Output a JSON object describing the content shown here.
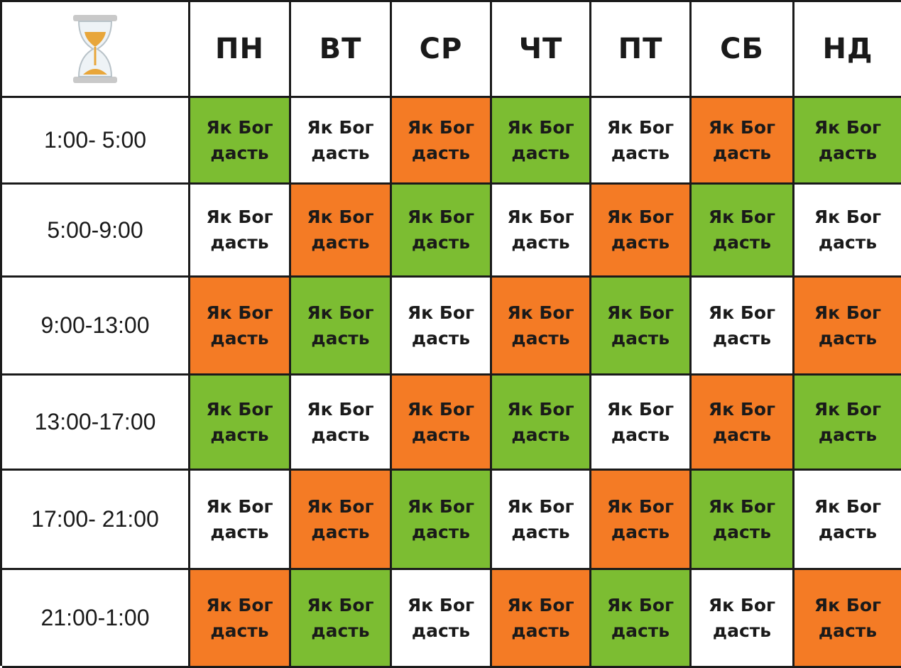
{
  "corner_icon": "hourglass-icon",
  "colors": {
    "green": "#7cbd32",
    "orange": "#f47b25",
    "white": "#ffffff",
    "sand": "#e8a63a",
    "grid_line": "#1a1a1a"
  },
  "days": [
    "ПН",
    "ВТ",
    "СР",
    "ЧТ",
    "ПТ",
    "СБ",
    "НД"
  ],
  "rows": [
    {
      "time": "1:00- 5:00",
      "cells": [
        {
          "line1": "Як Бог",
          "line2": "дасть",
          "color": "green"
        },
        {
          "line1": "Як Бог",
          "line2": "дасть",
          "color": "white"
        },
        {
          "line1": "Як Бог",
          "line2": "дасть",
          "color": "orange"
        },
        {
          "line1": "Як Бог",
          "line2": "дасть",
          "color": "green"
        },
        {
          "line1": "Як Бог",
          "line2": "дасть",
          "color": "white"
        },
        {
          "line1": "Як Бог",
          "line2": "дасть",
          "color": "orange"
        },
        {
          "line1": "Як Бог",
          "line2": "дасть",
          "color": "green"
        }
      ]
    },
    {
      "time": "5:00-9:00",
      "cells": [
        {
          "line1": "Як Бог",
          "line2": "дасть",
          "color": "white"
        },
        {
          "line1": "Як Бог",
          "line2": "дасть",
          "color": "orange"
        },
        {
          "line1": "Як Бог",
          "line2": "дасть",
          "color": "green"
        },
        {
          "line1": "Як Бог",
          "line2": "дасть",
          "color": "white"
        },
        {
          "line1": "Як Бог",
          "line2": "дасть",
          "color": "orange"
        },
        {
          "line1": "Як Бог",
          "line2": "дасть",
          "color": "green"
        },
        {
          "line1": "Як Бог",
          "line2": "дасть",
          "color": "white"
        }
      ]
    },
    {
      "time": "9:00-13:00",
      "cells": [
        {
          "line1": "Як Бог",
          "line2": "дасть",
          "color": "orange"
        },
        {
          "line1": "Як Бог",
          "line2": "дасть",
          "color": "green"
        },
        {
          "line1": "Як Бог",
          "line2": "дасть",
          "color": "white"
        },
        {
          "line1": "Як Бог",
          "line2": "дасть",
          "color": "orange"
        },
        {
          "line1": "Як Бог",
          "line2": "дасть",
          "color": "green"
        },
        {
          "line1": "Як Бог",
          "line2": "дасть",
          "color": "white"
        },
        {
          "line1": "Як Бог",
          "line2": "дасть",
          "color": "orange"
        }
      ]
    },
    {
      "time": "13:00-17:00",
      "cells": [
        {
          "line1": "Як Бог",
          "line2": "дасть",
          "color": "green"
        },
        {
          "line1": "Як Бог",
          "line2": "дасть",
          "color": "white"
        },
        {
          "line1": "Як Бог",
          "line2": "дасть",
          "color": "orange"
        },
        {
          "line1": "Як Бог",
          "line2": "дасть",
          "color": "green"
        },
        {
          "line1": "Як Бог",
          "line2": "дасть",
          "color": "white"
        },
        {
          "line1": "Як Бог",
          "line2": "дасть",
          "color": "orange"
        },
        {
          "line1": "Як Бог",
          "line2": "дасть",
          "color": "green"
        }
      ]
    },
    {
      "time": "17:00- 21:00",
      "cells": [
        {
          "line1": "Як Бог",
          "line2": "дасть",
          "color": "white"
        },
        {
          "line1": "Як Бог",
          "line2": "дасть",
          "color": "orange"
        },
        {
          "line1": "Як Бог",
          "line2": "дасть",
          "color": "green"
        },
        {
          "line1": "Як Бог",
          "line2": "дасть",
          "color": "white"
        },
        {
          "line1": "Як Бог",
          "line2": "дасть",
          "color": "orange"
        },
        {
          "line1": "Як Бог",
          "line2": "дасть",
          "color": "green"
        },
        {
          "line1": "Як Бог",
          "line2": "дасть",
          "color": "white"
        }
      ]
    },
    {
      "time": "21:00-1:00",
      "cells": [
        {
          "line1": "Як Бог",
          "line2": "дасть",
          "color": "orange"
        },
        {
          "line1": "Як Бог",
          "line2": "дасть",
          "color": "green"
        },
        {
          "line1": "Як Бог",
          "line2": "дасть",
          "color": "white"
        },
        {
          "line1": "Як Бог",
          "line2": "дасть",
          "color": "orange"
        },
        {
          "line1": "Як Бог",
          "line2": "дасть",
          "color": "green"
        },
        {
          "line1": "Як Бог",
          "line2": "дасть",
          "color": "white"
        },
        {
          "line1": "Як Бог",
          "line2": "дасть",
          "color": "orange"
        }
      ]
    }
  ]
}
